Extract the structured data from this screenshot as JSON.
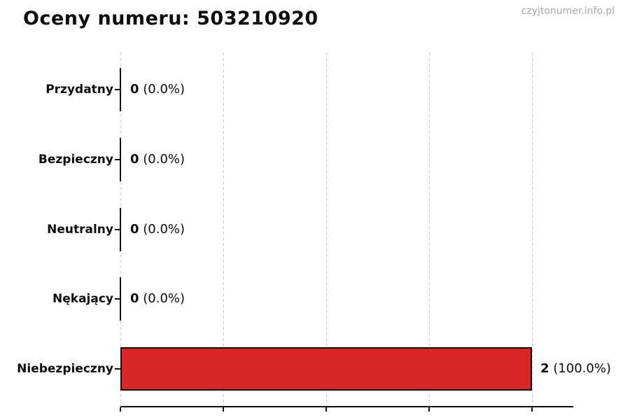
{
  "header": {
    "title": "Oceny numeru: 503210920",
    "watermark": "czyjtonumer.info.pl"
  },
  "chart_data": {
    "type": "bar",
    "orientation": "horizontal",
    "title": "Oceny numeru: 503210920",
    "xlabel": "",
    "ylabel": "",
    "xlim": [
      0,
      2.2
    ],
    "grid": true,
    "gridline_values": [
      0.0,
      0.5,
      1.0,
      1.5,
      2.0
    ],
    "legend_position": "none",
    "categories": [
      "Przydatny",
      "Bezpieczny",
      "Neutralny",
      "Nękający",
      "Niebezpieczny"
    ],
    "values": [
      0,
      0,
      0,
      0,
      2
    ],
    "percentages": [
      0.0,
      0.0,
      0.0,
      0.0,
      100.0
    ],
    "rows": [
      {
        "label": "Przydatny",
        "value": 0,
        "count": "0",
        "pct": "(0.0%)"
      },
      {
        "label": "Bezpieczny",
        "value": 0,
        "count": "0",
        "pct": "(0.0%)"
      },
      {
        "label": "Neutralny",
        "value": 0,
        "count": "0",
        "pct": "(0.0%)"
      },
      {
        "label": "Nękający",
        "value": 0,
        "count": "0",
        "pct": "(0.0%)"
      },
      {
        "label": "Niebezpieczny",
        "value": 2,
        "count": "2",
        "pct": "(100.0%)"
      }
    ],
    "colors": {
      "bar_fill": "#d92728",
      "bar_edge": "#111111",
      "grid": "#c9c9c9",
      "axis": "#111111",
      "text": "#0d0d0d",
      "watermark": "#a9a9a9"
    }
  }
}
